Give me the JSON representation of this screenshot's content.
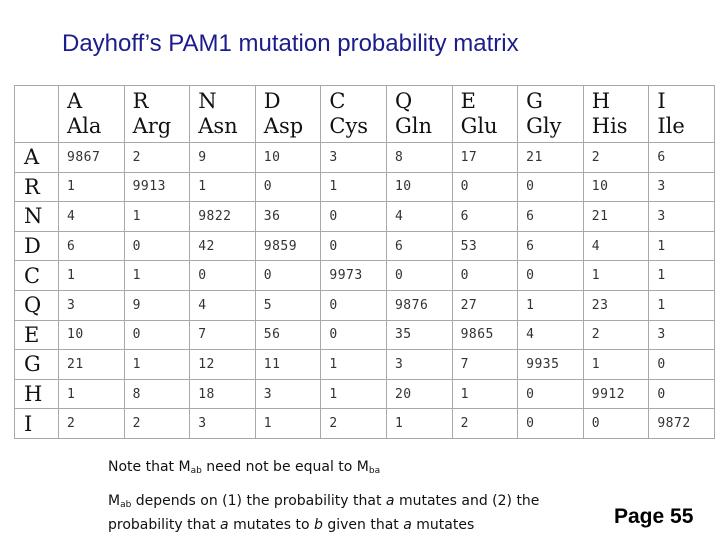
{
  "title": "Dayhoff’s PAM1 mutation probability matrix",
  "matrix": {
    "columns": [
      {
        "code": "A",
        "abbr": "Ala"
      },
      {
        "code": "R",
        "abbr": "Arg"
      },
      {
        "code": "N",
        "abbr": "Asn"
      },
      {
        "code": "D",
        "abbr": "Asp"
      },
      {
        "code": "C",
        "abbr": "Cys"
      },
      {
        "code": "Q",
        "abbr": "Gln"
      },
      {
        "code": "E",
        "abbr": "Glu"
      },
      {
        "code": "G",
        "abbr": "Gly"
      },
      {
        "code": "H",
        "abbr": "His"
      },
      {
        "code": "I",
        "abbr": "Ile"
      }
    ],
    "rows": [
      {
        "label": "A",
        "values": [
          "9867",
          "2",
          "9",
          "10",
          "3",
          "8",
          "17",
          "21",
          "2",
          "6"
        ]
      },
      {
        "label": "R",
        "values": [
          "1",
          "9913",
          "1",
          "0",
          "1",
          "10",
          "0",
          "0",
          "10",
          "3"
        ]
      },
      {
        "label": "N",
        "values": [
          "4",
          "1",
          "9822",
          "36",
          "0",
          "4",
          "6",
          "6",
          "21",
          "3"
        ]
      },
      {
        "label": "D",
        "values": [
          "6",
          "0",
          "42",
          "9859",
          "0",
          "6",
          "53",
          "6",
          "4",
          "1"
        ]
      },
      {
        "label": "C",
        "values": [
          "1",
          "1",
          "0",
          "0",
          "9973",
          "0",
          "0",
          "0",
          "1",
          "1"
        ]
      },
      {
        "label": "Q",
        "values": [
          "3",
          "9",
          "4",
          "5",
          "0",
          "9876",
          "27",
          "1",
          "23",
          "1"
        ]
      },
      {
        "label": "E",
        "values": [
          "10",
          "0",
          "7",
          "56",
          "0",
          "35",
          "9865",
          "4",
          "2",
          "3"
        ]
      },
      {
        "label": "G",
        "values": [
          "21",
          "1",
          "12",
          "11",
          "1",
          "3",
          "7",
          "9935",
          "1",
          "0"
        ]
      },
      {
        "label": "H",
        "values": [
          "1",
          "8",
          "18",
          "3",
          "1",
          "20",
          "1",
          "0",
          "9912",
          "0"
        ]
      },
      {
        "label": "I",
        "values": [
          "2",
          "2",
          "3",
          "1",
          "2",
          "1",
          "2",
          "0",
          "0",
          "9872"
        ]
      }
    ]
  },
  "notes": {
    "note1": {
      "text": "Note that M",
      "sub1": "ab",
      "middle": " need not be equal to M",
      "sub2": "ba"
    },
    "note2": {
      "m": "M",
      "sub": "ab",
      "text1": " depends on (1) the probability that ",
      "a1": "a",
      "text2": " mutates and (2) the probability that ",
      "a2": "a",
      "text3": " mutates to ",
      "b": "b",
      "text4": " given that ",
      "a3": "a",
      "text5": " mutates"
    }
  },
  "page_label": "Page 55"
}
